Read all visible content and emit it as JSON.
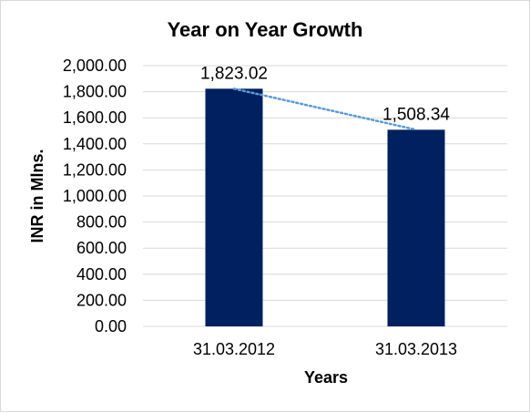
{
  "chart_data": {
    "type": "bar",
    "title": "Year on Year Growth",
    "xlabel": "Years",
    "ylabel": "INR in Mlns.",
    "categories": [
      "31.03.2012",
      "31.03.2013"
    ],
    "values": [
      1823.02,
      1508.34
    ],
    "data_labels": [
      "1,823.02",
      "1,508.34"
    ],
    "ylim": [
      0,
      2000
    ],
    "ytick_step": 200,
    "ytick_labels": [
      "0.00",
      "200.00",
      "400.00",
      "600.00",
      "800.00",
      "1,000.00",
      "1,200.00",
      "1,400.00",
      "1,600.00",
      "1,800.00",
      "2,000.00"
    ],
    "grid": true,
    "legend": "none",
    "trendline": "linear, dotted",
    "colors": {
      "bar": "#002060",
      "trendline": "#5b9bd5",
      "grid": "#d9d9d9"
    }
  }
}
